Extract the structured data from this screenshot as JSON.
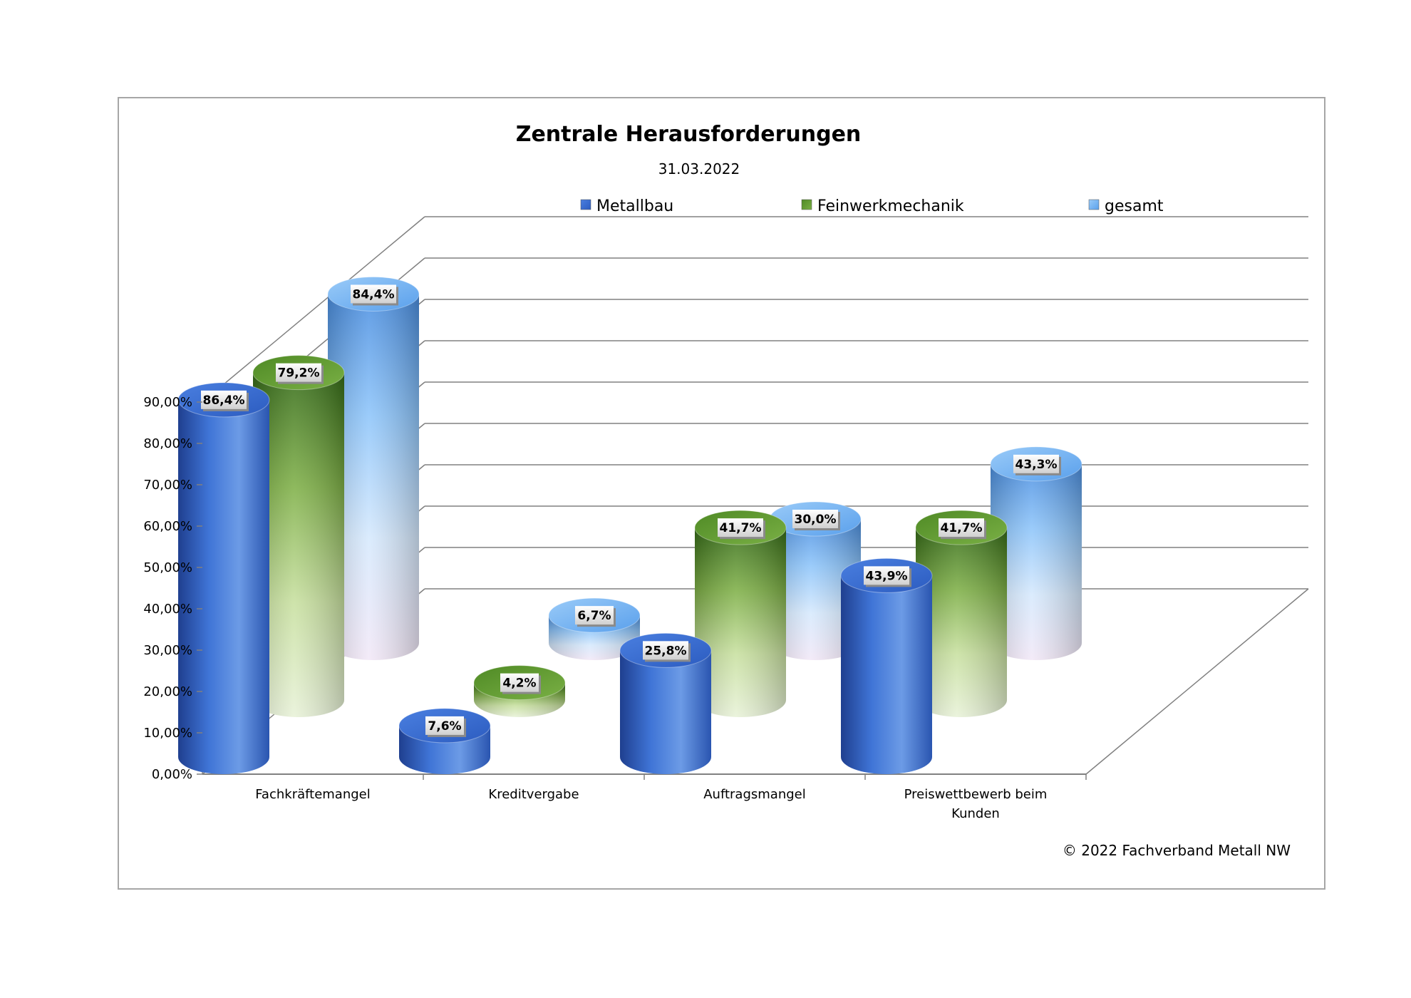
{
  "chart_data": {
    "type": "bar",
    "title": "Zentrale Herausforderungen",
    "subtitle": "31.03.2022",
    "categories": [
      "Fachkräftemangel",
      "Kreditvergabe",
      "Auftragsmangel",
      "Preiswettbewerb beim Kunden"
    ],
    "series": [
      {
        "name": "Metallbau",
        "values": [
          86.4,
          7.6,
          25.8,
          43.9
        ],
        "labels": [
          "86,4%",
          "7,6%",
          "25,8%",
          "43,9%"
        ],
        "color": "#3a6fd0"
      },
      {
        "name": "Feinwerkmechanik",
        "values": [
          79.2,
          4.2,
          41.7,
          41.7
        ],
        "labels": [
          "79,2%",
          "4,2%",
          "41,7%",
          "41,7%"
        ],
        "color": "#6fa035"
      },
      {
        "name": "gesamt",
        "values": [
          84.4,
          6.7,
          30.0,
          43.3
        ],
        "labels": [
          "84,4%",
          "6,7%",
          "30,0%",
          "43,3%"
        ],
        "color": "#7fb8f5"
      }
    ],
    "y_ticks": [
      "0,00%",
      "10,00%",
      "20,00%",
      "30,00%",
      "40,00%",
      "50,00%",
      "60,00%",
      "70,00%",
      "80,00%",
      "90,00%"
    ],
    "ylim": [
      0,
      90
    ],
    "legend_position": "top",
    "grid": true,
    "style": "3d-cylinder"
  },
  "footer": {
    "copyright": "© 2022 Fachverband Metall NW"
  }
}
